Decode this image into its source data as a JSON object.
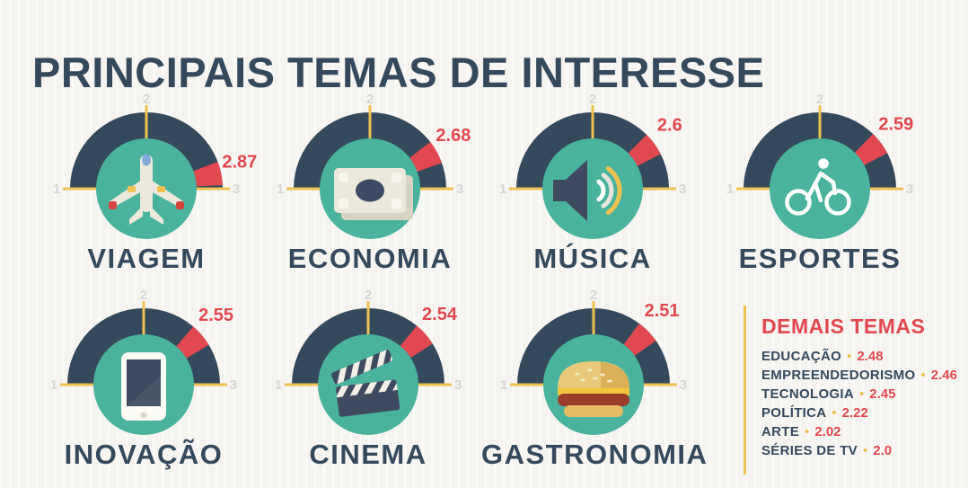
{
  "title": "PRINCIPAIS TEMAS DE INTERESSE",
  "scale": {
    "min": "1",
    "mid": "2",
    "max": "3"
  },
  "bullet": "•",
  "gauges": [
    {
      "label": "VIAGEM",
      "value": 2.87,
      "display_value": "2.87",
      "icon": "airplane-icon",
      "row": 1,
      "col": 1
    },
    {
      "label": "ECONOMIA",
      "value": 2.68,
      "display_value": "2.68",
      "icon": "banknote-icon",
      "row": 1,
      "col": 2
    },
    {
      "label": "MÚSICA",
      "value": 2.6,
      "display_value": "2.6",
      "icon": "speaker-icon",
      "row": 1,
      "col": 3
    },
    {
      "label": "ESPORTES",
      "value": 2.59,
      "display_value": "2.59",
      "icon": "bicycle-icon",
      "row": 1,
      "col": 4
    },
    {
      "label": "INOVAÇÃO",
      "value": 2.55,
      "display_value": "2.55",
      "icon": "smartphone-icon",
      "row": 2,
      "col": 1
    },
    {
      "label": "CINEMA",
      "value": 2.54,
      "display_value": "2.54",
      "icon": "clapperboard-icon",
      "row": 2,
      "col": 2
    },
    {
      "label": "GASTRONOMIA",
      "value": 2.51,
      "display_value": "2.51",
      "icon": "burger-icon",
      "row": 2,
      "col": 3
    }
  ],
  "other_topics": {
    "title": "DEMAIS TEMAS",
    "items": [
      {
        "label": "EDUCAÇÃO",
        "display_value": "2.48"
      },
      {
        "label": "EMPREENDEDORISMO",
        "display_value": "2.46"
      },
      {
        "label": "TECNOLOGIA",
        "display_value": "2.45"
      },
      {
        "label": "POLÍTICA",
        "display_value": "2.22"
      },
      {
        "label": "ARTE",
        "display_value": "2.02"
      },
      {
        "label": "SÉRIES DE TV",
        "display_value": "2.0"
      }
    ]
  },
  "colors": {
    "background": "#f5f4f1",
    "ink": "#35495d",
    "gauge_dark": "#35495c",
    "teal": "#49b39d",
    "red": "#e2484f",
    "yellow": "#eec150",
    "scale_gray": "#d6d6d6"
  },
  "chart_data": {
    "type": "gauge",
    "title": "PRINCIPAIS TEMAS DE INTERESSE",
    "range": [
      1,
      3
    ],
    "scale_ticks": [
      1,
      2,
      3
    ],
    "gauges": [
      {
        "category": "VIAGEM",
        "value": 2.87
      },
      {
        "category": "ECONOMIA",
        "value": 2.68
      },
      {
        "category": "MÚSICA",
        "value": 2.6
      },
      {
        "category": "ESPORTES",
        "value": 2.59
      },
      {
        "category": "INOVAÇÃO",
        "value": 2.55
      },
      {
        "category": "CINEMA",
        "value": 2.54
      },
      {
        "category": "GASTRONOMIA",
        "value": 2.51
      }
    ],
    "other_topics": [
      {
        "category": "EDUCAÇÃO",
        "value": 2.48
      },
      {
        "category": "EMPREENDEDORISMO",
        "value": 2.46
      },
      {
        "category": "TECNOLOGIA",
        "value": 2.45
      },
      {
        "category": "POLÍTICA",
        "value": 2.22
      },
      {
        "category": "ARTE",
        "value": 2.02
      },
      {
        "category": "SÉRIES DE TV",
        "value": 2.0
      }
    ]
  }
}
